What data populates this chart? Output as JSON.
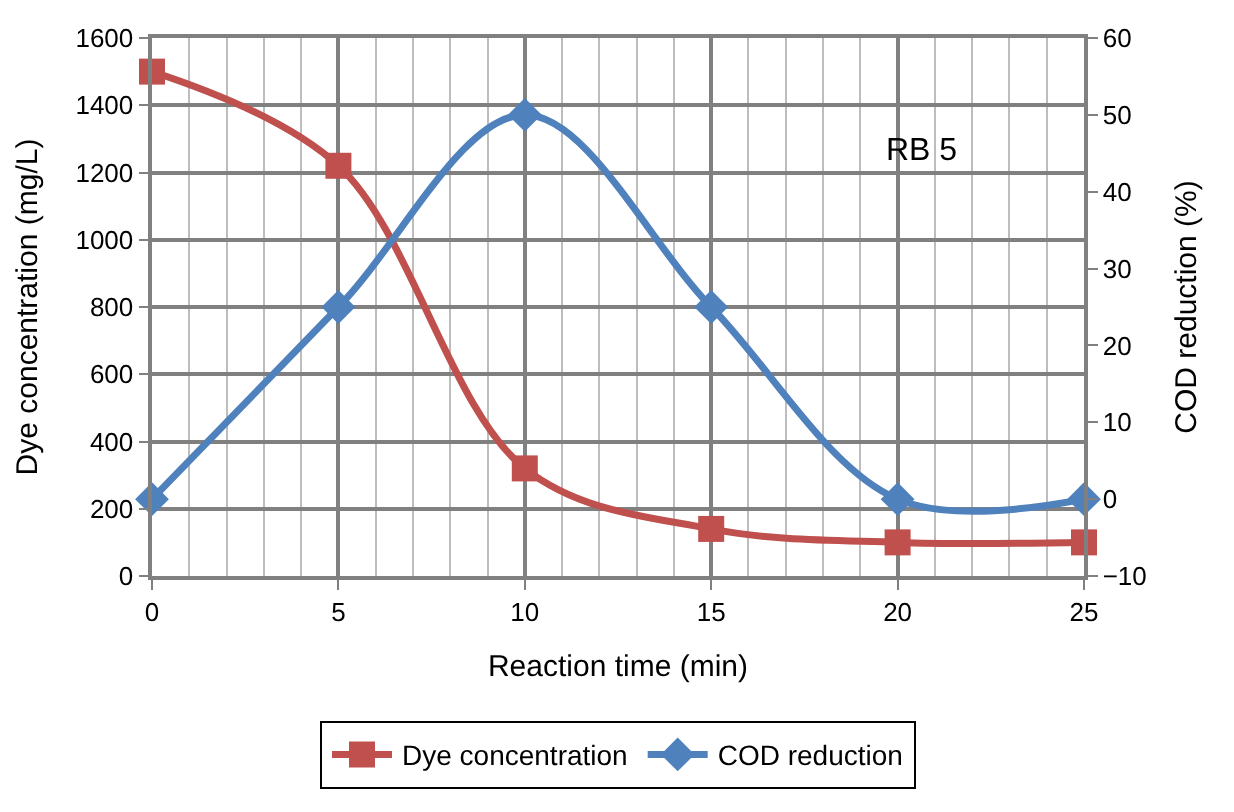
{
  "chart_data": {
    "type": "line",
    "xlabel": "Reaction time (min)",
    "ylabel": "Dye concentration (mg/L)",
    "y2label": "COD reduction (%)",
    "x": [
      0,
      5,
      10,
      15,
      20,
      25
    ],
    "series": [
      {
        "name": "Dye concentration",
        "color": "#c0504d",
        "marker": "square",
        "values": [
          1500,
          1220,
          320,
          140,
          100,
          100
        ]
      },
      {
        "name": "COD reduction",
        "color": "#4f81bd",
        "marker": "diamond",
        "axis": "y2",
        "values": [
          0,
          25,
          50,
          25,
          0,
          0
        ]
      }
    ],
    "xlim": [
      0,
      25
    ],
    "xticks": [
      0,
      5,
      10,
      15,
      20,
      25
    ],
    "ylim": [
      0,
      1600
    ],
    "yticks": [
      0,
      200,
      400,
      600,
      800,
      1000,
      1200,
      1400,
      1600
    ],
    "y2lim": [
      -10,
      60
    ],
    "y2ticks": [
      -10,
      0,
      10,
      20,
      30,
      40,
      50,
      60
    ],
    "annotations": [
      "RB 5"
    ],
    "grid": true,
    "legend": "bottom",
    "line_style": "solid"
  }
}
